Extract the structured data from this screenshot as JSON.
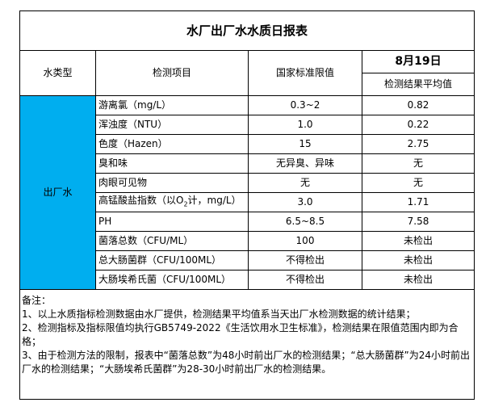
{
  "title": "水厂出厂水水质日报表",
  "header": {
    "type": "水类型",
    "item": "检测项目",
    "standard": "国家标准限值",
    "date": "8月19日",
    "result": "检测结果平均值"
  },
  "type_label": "出厂水",
  "type_color": "#00AEEF",
  "rows": [
    {
      "item": "游离氯（mg/L）",
      "standard": "0.3~2",
      "result": "0.82"
    },
    {
      "item": "浑浊度（NTU）",
      "standard": "1.0",
      "result": "0.22"
    },
    {
      "item": "色度（Hazen）",
      "standard": "15",
      "result": "2.75"
    },
    {
      "item": "臭和味",
      "standard": "无异臭、异味",
      "result": "无"
    },
    {
      "item": "肉眼可见物",
      "standard": "无",
      "result": "无"
    },
    {
      "item_pre": "高锰酸盐指数（以O",
      "item_sub": "2",
      "item_post": "计，mg/L）",
      "standard": "3.0",
      "result": "1.71"
    },
    {
      "item": "PH",
      "standard": "6.5~8.5",
      "result": "7.58"
    },
    {
      "item": "菌落总数（CFU/ML）",
      "standard": "100",
      "result": "未检出"
    },
    {
      "item": "总大肠菌群（CFU/100ML）",
      "standard": "不得检出",
      "result": "未检出"
    },
    {
      "item": "大肠埃希氏菌（CFU/100ML）",
      "standard": "不得检出",
      "result": "未检出"
    }
  ],
  "notes": {
    "heading": "备注：",
    "lines": [
      "1、以上水质指标检测数据由水厂提供，检测结果平均值系当天出厂水检测数据的统计结果；",
      "2、检测指标及指标限值均执行GB5749-2022《生活饮用水卫生标准》，检测结果在限值范围内即为合格；",
      "3、由于检测方法的限制，报表中“菌落总数”为48小时前出厂水的检测结果；“总大肠菌群”为24小时前出厂水的检测结果；“大肠埃希氏菌群”为28-30小时前出厂水的检测结果。"
    ]
  }
}
